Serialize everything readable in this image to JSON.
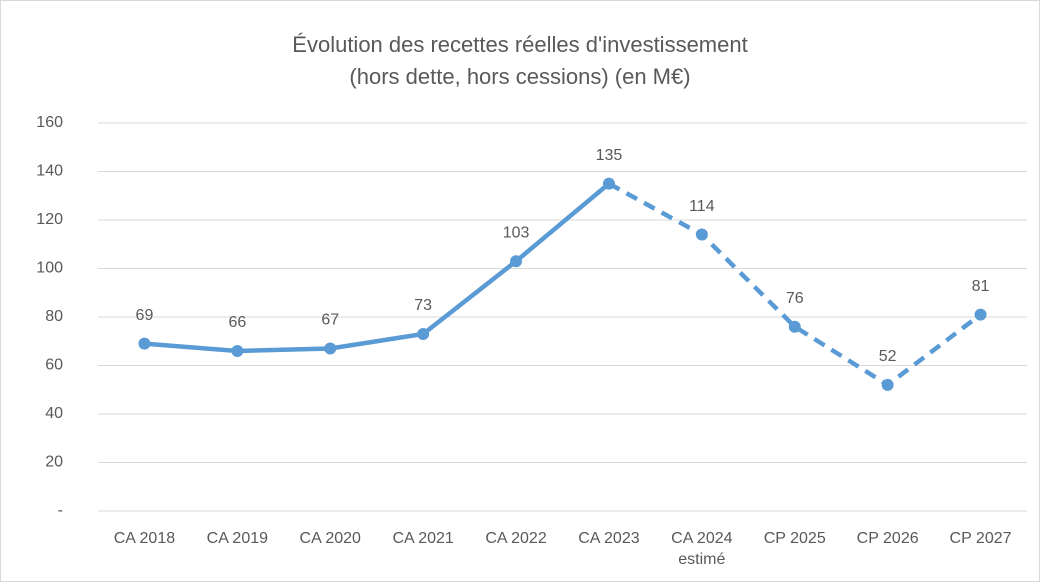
{
  "chart_data": {
    "type": "line",
    "title": "Évolution des recettes réelles d'investissement",
    "subtitle": "(hors dette, hors cessions) (en M€)",
    "categories": [
      "CA 2018",
      "CA 2019",
      "CA 2020",
      "CA 2021",
      "CA 2022",
      "CA 2023",
      "CA 2024\nestimé",
      "CP 2025",
      "CP 2026",
      "CP 2027"
    ],
    "series": [
      {
        "name": "Recettes réelles d'investissement",
        "color": "#5b9bd5",
        "values": [
          69,
          66,
          67,
          73,
          103,
          135,
          114,
          76,
          52,
          81
        ]
      }
    ],
    "dashed_from_index": 5,
    "ylim": [
      0,
      160
    ],
    "yticks": [
      {
        "value": 0,
        "label": "-"
      },
      20,
      40,
      60,
      80,
      100,
      120,
      140,
      160
    ],
    "grid": true,
    "legend": false
  }
}
